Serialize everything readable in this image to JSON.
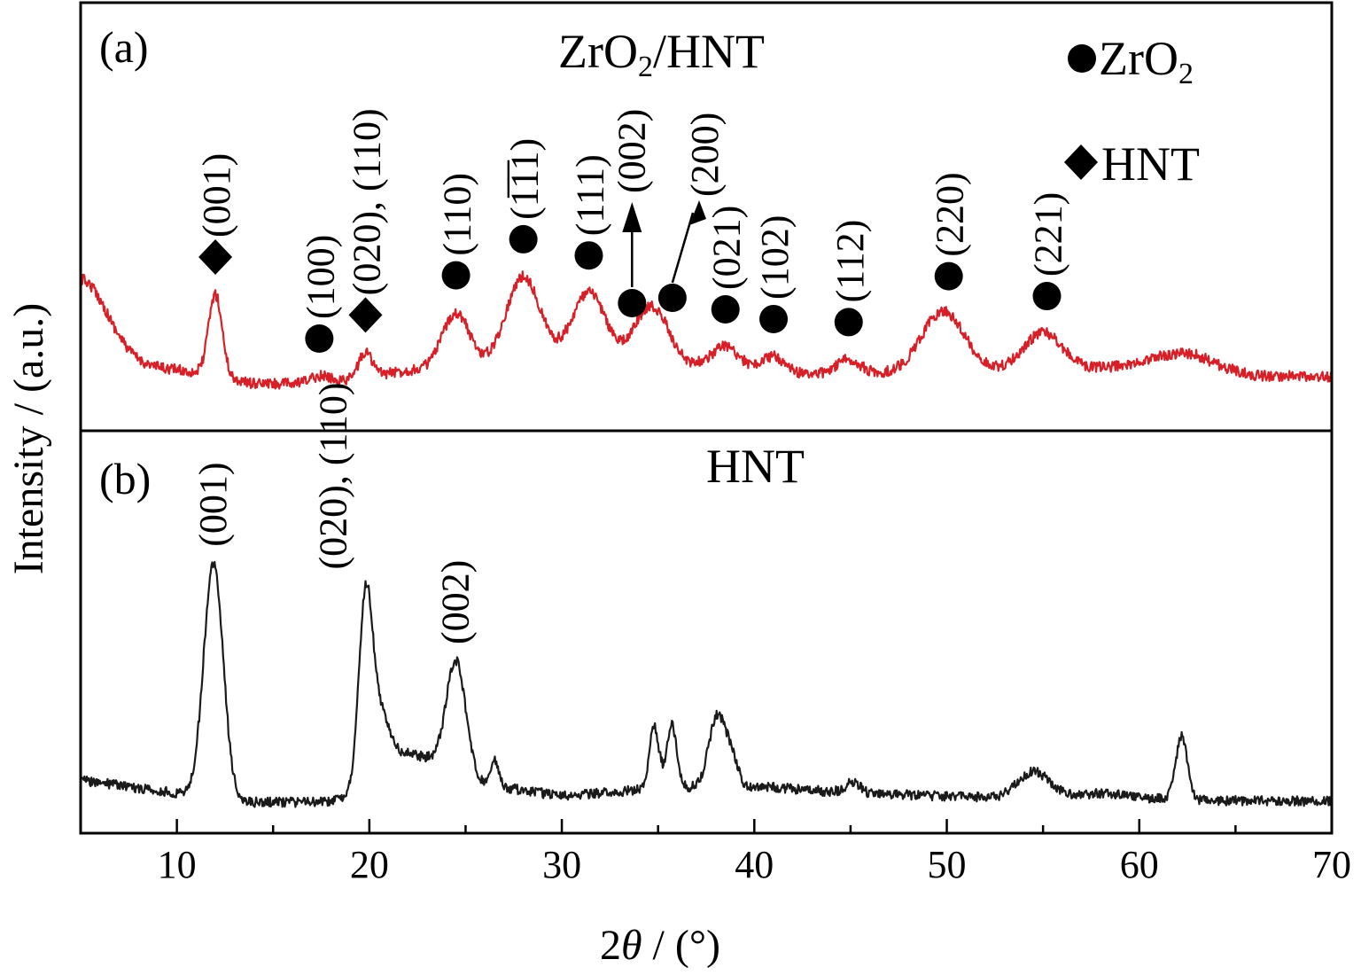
{
  "chart_data": [
    {
      "type": "line",
      "panel_label": "(a)",
      "title": "ZrO2/HNT",
      "title_main": "ZrO",
      "title_sub": "2",
      "title_tail": "/HNT",
      "color": "#d71f27",
      "legend": [
        {
          "marker": "circle",
          "label_main": "ZrO",
          "label_sub": "2"
        },
        {
          "marker": "diamond",
          "label_main": "HNT",
          "label_sub": ""
        }
      ],
      "baseline": [
        [
          5,
          410
        ],
        [
          10,
          417
        ],
        [
          12,
          424
        ],
        [
          14,
          433
        ],
        [
          17,
          433
        ],
        [
          19,
          428
        ],
        [
          22,
          418
        ],
        [
          25,
          414
        ],
        [
          28,
          412
        ],
        [
          32,
          410
        ],
        [
          37,
          412
        ],
        [
          42,
          422
        ],
        [
          47,
          421
        ],
        [
          52,
          418
        ],
        [
          56,
          417
        ],
        [
          60,
          413
        ],
        [
          63,
          410
        ],
        [
          66,
          424
        ],
        [
          70,
          425
        ]
      ],
      "start_bump": {
        "x": 5,
        "height": 95,
        "width": 1.4
      },
      "peaks": [
        {
          "x": 12.0,
          "height": 92,
          "width": 0.35
        },
        {
          "x": 17.4,
          "height": 8,
          "width": 0.5
        },
        {
          "x": 19.8,
          "height": 28,
          "width": 0.35
        },
        {
          "x": 24.5,
          "height": 62,
          "width": 0.7
        },
        {
          "x": 28.0,
          "height": 100,
          "width": 0.9
        },
        {
          "x": 31.4,
          "height": 80,
          "width": 0.9
        },
        {
          "x": 34.2,
          "height": 40,
          "width": 0.7
        },
        {
          "x": 35.1,
          "height": 40,
          "width": 0.7
        },
        {
          "x": 38.5,
          "height": 24,
          "width": 0.7
        },
        {
          "x": 41.0,
          "height": 18,
          "width": 0.6
        },
        {
          "x": 44.9,
          "height": 16,
          "width": 0.6
        },
        {
          "x": 49.8,
          "height": 68,
          "width": 1.1
        },
        {
          "x": 55.0,
          "height": 42,
          "width": 1.0
        },
        {
          "x": 62.0,
          "height": 12,
          "width": 1.4
        }
      ],
      "annotations": [
        {
          "text": "(001)",
          "marker": "diamond",
          "x": 12.0
        },
        {
          "text": "(100)",
          "marker": "circle",
          "x": 17.4
        },
        {
          "text": "(020), (110)",
          "marker": "diamond",
          "x": 19.8
        },
        {
          "text": "(110)",
          "marker": "circle",
          "x": 24.5
        },
        {
          "text": "(1̅1̅1)",
          "marker": "circle",
          "x": 28.0
        },
        {
          "text": "(111)",
          "marker": "circle",
          "x": 31.4
        },
        {
          "text": "(002)",
          "marker": "circle",
          "x": 34.2
        },
        {
          "text": "(200)",
          "marker": "circle",
          "x": 35.1
        },
        {
          "text": "(021)",
          "marker": "circle",
          "x": 38.5
        },
        {
          "text": "(102)",
          "marker": "circle",
          "x": 41.0
        },
        {
          "text": "(112)",
          "marker": "circle",
          "x": 44.9
        },
        {
          "text": "(220)",
          "marker": "circle",
          "x": 50.1
        },
        {
          "text": "(221)",
          "marker": "circle",
          "x": 55.2
        }
      ]
    },
    {
      "type": "line",
      "panel_label": "(b)",
      "title": "HNT",
      "color": "#1a1a1a",
      "baseline": [
        [
          5,
          880
        ],
        [
          10,
          895
        ],
        [
          14,
          905
        ],
        [
          18,
          905
        ],
        [
          19.5,
          890
        ],
        [
          21,
          855
        ],
        [
          22,
          850
        ],
        [
          23,
          855
        ],
        [
          26,
          885
        ],
        [
          30,
          898
        ],
        [
          36,
          888
        ],
        [
          41,
          888
        ],
        [
          45,
          895
        ],
        [
          53,
          900
        ],
        [
          58,
          895
        ],
        [
          62,
          903
        ],
        [
          70,
          904
        ]
      ],
      "peaks": [
        {
          "x": 11.9,
          "height": 265,
          "width": 0.5
        },
        {
          "x": 19.8,
          "height": 200,
          "width": 0.35
        },
        {
          "x": 20.5,
          "height": 60,
          "width": 0.5
        },
        {
          "x": 24.5,
          "height": 125,
          "width": 0.5
        },
        {
          "x": 26.5,
          "height": 30,
          "width": 0.2
        },
        {
          "x": 34.8,
          "height": 70,
          "width": 0.25
        },
        {
          "x": 35.7,
          "height": 72,
          "width": 0.25
        },
        {
          "x": 38.1,
          "height": 82,
          "width": 0.45
        },
        {
          "x": 38.9,
          "height": 25,
          "width": 0.3
        },
        {
          "x": 45.1,
          "height": 12,
          "width": 0.4
        },
        {
          "x": 54.5,
          "height": 28,
          "width": 0.8
        },
        {
          "x": 62.2,
          "height": 72,
          "width": 0.3
        }
      ],
      "annotations": [
        {
          "text": "(001)",
          "x": 11.9
        },
        {
          "text": "(020), (110)",
          "x": 19.8
        },
        {
          "text": "(002)",
          "x": 24.5
        }
      ]
    }
  ],
  "axes": {
    "xlabel_prefix": "2",
    "xlabel_theta": "θ",
    "xlabel_suffix": " / (°)",
    "ylabel": "Intensity / (a.u.)",
    "xlim": [
      5,
      70
    ],
    "x_ticks": [
      10,
      20,
      30,
      40,
      50,
      60,
      70
    ],
    "x_minor_step": 5
  }
}
